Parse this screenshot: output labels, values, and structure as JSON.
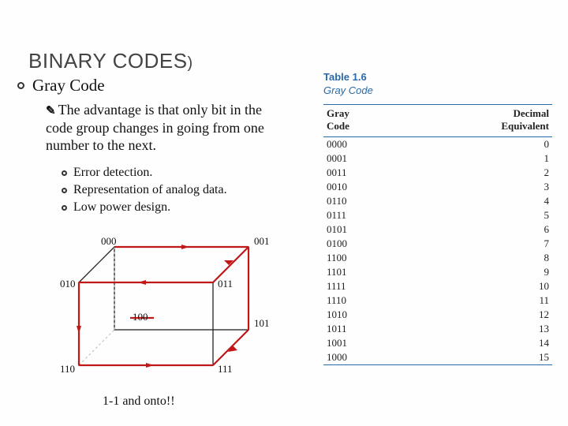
{
  "title_main": "BINARY CODES",
  "title_paren": ")",
  "subtitle": "Gray Code",
  "body": "The advantage is that only bit in the code group changes in going from one number to the next.",
  "sublist": {
    "a": "Error detection.",
    "b": "Representation of analog data.",
    "c": "Low power design."
  },
  "cube": {
    "v000": "000",
    "v001": "001",
    "v010": "010",
    "v011": "011",
    "v100": "100",
    "v101": "101",
    "v110": "110",
    "v111": "111",
    "stroke_cube": "#222222",
    "stroke_dash": "#bbbbbb",
    "stroke_path": "#c01818",
    "path_width": 2.2
  },
  "footer": "1-1 and onto!!",
  "table": {
    "caption": "Table 1.6",
    "subtitle": "Gray Code",
    "col1": "Gray Code",
    "col2": "Decimal Equivalent",
    "line_color": "#2a6aa8",
    "rows": [
      {
        "g": "0000",
        "d": "0"
      },
      {
        "g": "0001",
        "d": "1"
      },
      {
        "g": "0011",
        "d": "2"
      },
      {
        "g": "0010",
        "d": "3"
      },
      {
        "g": "0110",
        "d": "4"
      },
      {
        "g": "0111",
        "d": "5"
      },
      {
        "g": "0101",
        "d": "6"
      },
      {
        "g": "0100",
        "d": "7"
      },
      {
        "g": "1100",
        "d": "8"
      },
      {
        "g": "1101",
        "d": "9"
      },
      {
        "g": "1111",
        "d": "10"
      },
      {
        "g": "1110",
        "d": "11"
      },
      {
        "g": "1010",
        "d": "12"
      },
      {
        "g": "1011",
        "d": "13"
      },
      {
        "g": "1001",
        "d": "14"
      },
      {
        "g": "1000",
        "d": "15"
      }
    ]
  }
}
